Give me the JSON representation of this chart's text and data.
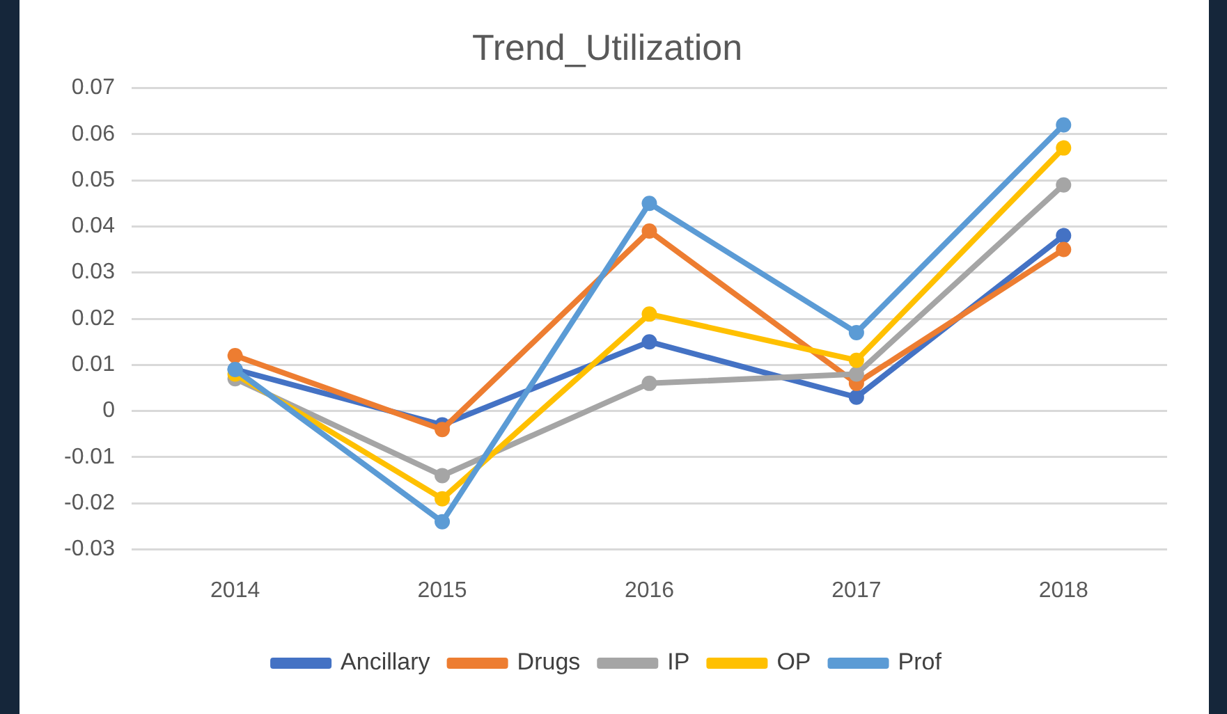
{
  "chart_data": {
    "type": "line",
    "title": "Trend_Utilization",
    "categories": [
      "2014",
      "2015",
      "2016",
      "2017",
      "2018"
    ],
    "series": [
      {
        "name": "Ancillary",
        "color": "#4472c4",
        "values": [
          0.009,
          -0.003,
          0.015,
          0.003,
          0.038
        ]
      },
      {
        "name": "Drugs",
        "color": "#ed7d31",
        "values": [
          0.012,
          -0.004,
          0.039,
          0.006,
          0.035
        ]
      },
      {
        "name": "IP",
        "color": "#a5a5a5",
        "values": [
          0.007,
          -0.014,
          0.006,
          0.008,
          0.049
        ]
      },
      {
        "name": "OP",
        "color": "#ffc000",
        "values": [
          0.008,
          -0.019,
          0.021,
          0.011,
          0.057
        ]
      },
      {
        "name": "Prof",
        "color": "#5b9bd5",
        "values": [
          0.009,
          -0.024,
          0.045,
          0.017,
          0.062
        ]
      }
    ],
    "ylim": [
      -0.03,
      0.07
    ],
    "yticks": [
      -0.03,
      -0.02,
      -0.01,
      0,
      0.01,
      0.02,
      0.03,
      0.04,
      0.05,
      0.06,
      0.07
    ],
    "grid": "y",
    "legend": "bottom",
    "marker": "circle",
    "line_style": "solid"
  }
}
